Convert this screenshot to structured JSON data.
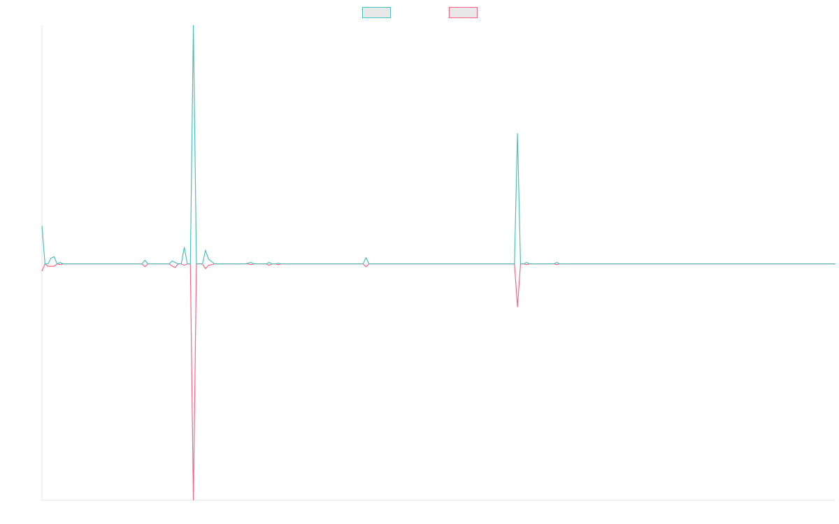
{
  "chart_data": {
    "type": "line",
    "ylim": [
      -99,
      100
    ],
    "legend": "top",
    "series": [
      {
        "color": "#4bc0c0",
        "values": [
          16,
          0,
          0,
          2.4,
          3,
          0,
          0.6,
          0,
          0,
          0,
          0,
          0,
          0,
          0,
          0,
          0,
          0,
          0,
          0,
          0,
          0,
          0,
          0,
          0,
          0,
          0,
          0,
          0,
          0,
          0,
          0,
          0,
          0,
          0,
          1.5,
          0,
          0,
          0,
          0,
          0,
          0,
          0,
          0,
          1.2,
          0.6,
          0,
          0,
          7,
          0,
          0,
          100,
          0,
          0,
          0,
          5.6,
          2,
          1,
          0,
          0,
          0,
          0,
          0,
          0,
          0,
          0,
          0,
          0,
          0,
          0.3,
          0.6,
          0,
          0,
          0,
          0,
          0,
          0.6,
          0,
          0,
          0.3,
          0,
          0,
          0,
          0,
          0,
          0,
          0,
          0,
          0,
          0,
          0,
          0,
          0,
          0,
          0,
          0,
          0,
          0,
          0,
          0,
          0,
          0,
          0,
          0,
          0,
          0,
          0,
          0,
          2.6,
          0,
          0,
          0,
          0,
          0,
          0,
          0,
          0,
          0,
          0,
          0,
          0,
          0,
          0,
          0,
          0,
          0,
          0,
          0,
          0,
          0,
          0,
          0,
          0,
          0,
          0,
          0,
          0,
          0,
          0,
          0,
          0,
          0,
          0,
          0,
          0,
          0,
          0,
          0,
          0,
          0,
          0,
          0,
          0,
          0,
          0,
          0,
          0,
          0,
          54.7,
          0,
          0,
          0.6,
          0,
          0,
          0,
          0,
          0,
          0,
          0,
          0,
          0,
          0.6,
          0,
          0,
          0,
          0,
          0,
          0,
          0,
          0,
          0,
          0,
          0,
          0,
          0,
          0,
          0,
          0,
          0,
          0,
          0,
          0,
          0,
          0,
          0,
          0,
          0,
          0,
          0,
          0,
          0,
          0,
          0,
          0,
          0,
          0,
          0,
          0,
          0,
          0,
          0,
          0,
          0,
          0,
          0,
          0,
          0,
          0,
          0,
          0,
          0,
          0,
          0,
          0,
          0,
          0,
          0,
          0,
          0,
          0,
          0,
          0,
          0,
          0,
          0,
          0,
          0,
          0,
          0,
          0,
          0,
          0,
          0,
          0,
          0,
          0,
          0,
          0,
          0,
          0,
          0,
          0,
          0,
          0,
          0,
          0,
          0,
          0,
          0,
          0,
          0,
          0,
          0,
          0
        ]
      },
      {
        "color": "#ff6384",
        "values": [
          -3,
          0,
          -1,
          -1,
          -1,
          0,
          -0.3,
          0,
          0,
          0,
          0,
          0,
          0,
          0,
          0,
          0,
          0,
          0,
          0,
          0,
          0,
          0,
          0,
          0,
          0,
          0,
          0,
          0,
          0,
          0,
          0,
          0,
          0,
          0,
          -1.2,
          0,
          0,
          0,
          0,
          0,
          0,
          0,
          0,
          -0.9,
          -1.5,
          0,
          0,
          -0.6,
          0,
          0,
          -99,
          0,
          0,
          0,
          -2,
          -0.6,
          -0.3,
          0,
          0,
          0,
          0,
          0,
          0,
          0,
          0,
          0,
          0,
          0,
          0,
          -0.3,
          0,
          0,
          0,
          0,
          0,
          -0.6,
          0,
          0,
          -0.3,
          0,
          0,
          0,
          0,
          0,
          0,
          0,
          0,
          0,
          0,
          0,
          0,
          0,
          0,
          0,
          0,
          0,
          0,
          0,
          0,
          0,
          0,
          0,
          0,
          0,
          0,
          0,
          0,
          -1.2,
          0,
          0,
          0,
          0,
          0,
          0,
          0,
          0,
          0,
          0,
          0,
          0,
          0,
          0,
          0,
          0,
          0,
          0,
          0,
          0,
          0,
          0,
          0,
          0,
          0,
          0,
          0,
          0,
          0,
          0,
          0,
          0,
          0,
          0,
          0,
          0,
          0,
          0,
          0,
          0,
          0,
          0,
          0,
          0,
          0,
          0,
          0,
          0,
          0,
          -18.1,
          0,
          0,
          -0.3,
          0,
          0,
          0,
          0,
          0,
          0,
          0,
          0,
          0,
          -0.3,
          0,
          0,
          0,
          0,
          0,
          0,
          0,
          0,
          0,
          0,
          0,
          0,
          0,
          0,
          0,
          0,
          0,
          0,
          0,
          0,
          0,
          0,
          0,
          0,
          0,
          0,
          0,
          0,
          0,
          0,
          0,
          0,
          0,
          0,
          0,
          0,
          0,
          0,
          0,
          0,
          0,
          0,
          0,
          0,
          0,
          0,
          0,
          0,
          0,
          0,
          0,
          0,
          0,
          0,
          0,
          0,
          0,
          0,
          0,
          0,
          0,
          0,
          0,
          0,
          0,
          0,
          0,
          0,
          0,
          0,
          0,
          0,
          0,
          0,
          0,
          0,
          0,
          0,
          0,
          0,
          0,
          0,
          0,
          0,
          0,
          0,
          0,
          0,
          0,
          0,
          0,
          0
        ]
      }
    ]
  }
}
